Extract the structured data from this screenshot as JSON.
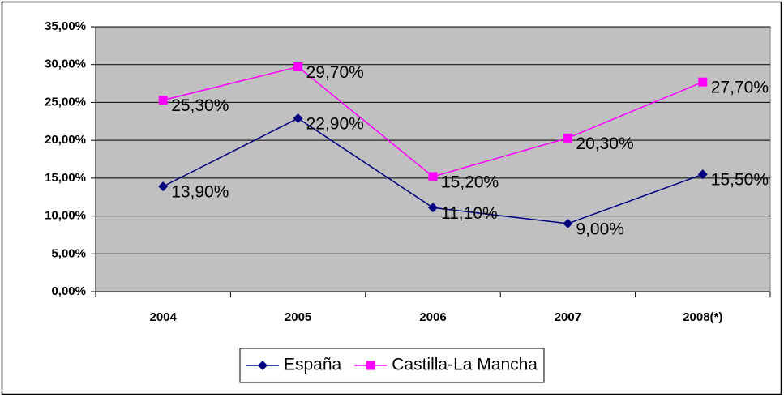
{
  "chart_data": {
    "type": "line",
    "categories": [
      "2004",
      "2005",
      "2006",
      "2007",
      "2008(*)"
    ],
    "series": [
      {
        "name": "España",
        "color": "#000080",
        "marker": "diamond",
        "values": [
          13.9,
          22.9,
          11.1,
          9.0,
          15.5
        ],
        "value_labels": [
          "13,90%",
          "22,90%",
          "11,10%",
          "9,00%",
          "15,50%"
        ]
      },
      {
        "name": "Castilla-La Mancha",
        "color": "#ff00ff",
        "marker": "square",
        "values": [
          25.3,
          29.7,
          15.2,
          20.3,
          27.7
        ],
        "value_labels": [
          "25,30%",
          "29,70%",
          "15,20%",
          "20,30%",
          "27,70%"
        ]
      }
    ],
    "ylim": [
      0,
      35
    ],
    "yticks": [
      {
        "value": 0,
        "label": "0,00%"
      },
      {
        "value": 5,
        "label": "5,00%"
      },
      {
        "value": 10,
        "label": "10,00%"
      },
      {
        "value": 15,
        "label": "15,00%"
      },
      {
        "value": 20,
        "label": "20,00%"
      },
      {
        "value": 25,
        "label": "25,00%"
      },
      {
        "value": 30,
        "label": "30,00%"
      },
      {
        "value": 35,
        "label": "35,00%"
      }
    ],
    "grid": true,
    "plot_background": "#c0c0c0",
    "legend": "bottom"
  }
}
